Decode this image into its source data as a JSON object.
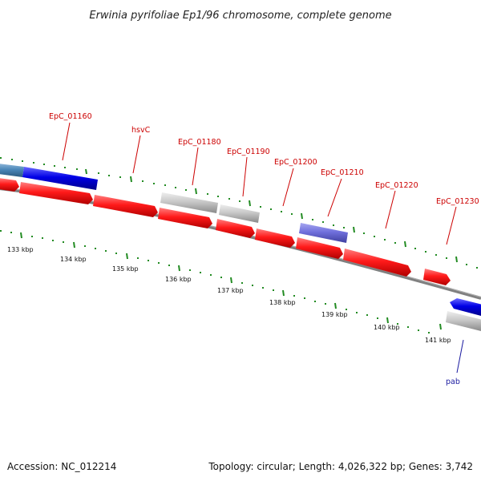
{
  "header": {
    "title": "Erwinia pyrifoliae Ep1/96 chromosome, complete genome"
  },
  "footer": {
    "accession": "Accession: NC_012214",
    "summary": "Topology: circular; Length: 4,026,322 bp; Genes: 3,742"
  },
  "colors": {
    "forward_gene": "#ff1a1a",
    "reverse_gene": "#0000e6",
    "pseudo_gene": "#c8c8c8",
    "rna_gene": "#7070dd",
    "backbone": "#808080",
    "tick": "#228b22",
    "label_red": "#cc0000",
    "label_blue": "#1a1aa0"
  },
  "ruler": {
    "ticks": [
      {
        "label": "133 kbp"
      },
      {
        "label": "134 kbp"
      },
      {
        "label": "135 kbp"
      },
      {
        "label": "136 kbp"
      },
      {
        "label": "137 kbp"
      },
      {
        "label": "138 kbp"
      },
      {
        "label": "139 kbp"
      },
      {
        "label": "140 kbp"
      },
      {
        "label": "141 kbp"
      }
    ]
  },
  "gene_labels": [
    {
      "name": "EpC_01160"
    },
    {
      "name": "hsvC"
    },
    {
      "name": "EpC_01180"
    },
    {
      "name": "EpC_01190"
    },
    {
      "name": "EpC_01200"
    },
    {
      "name": "EpC_01210"
    },
    {
      "name": "EpC_01220"
    },
    {
      "name": "EpC_01230"
    },
    {
      "name": "pab"
    }
  ]
}
